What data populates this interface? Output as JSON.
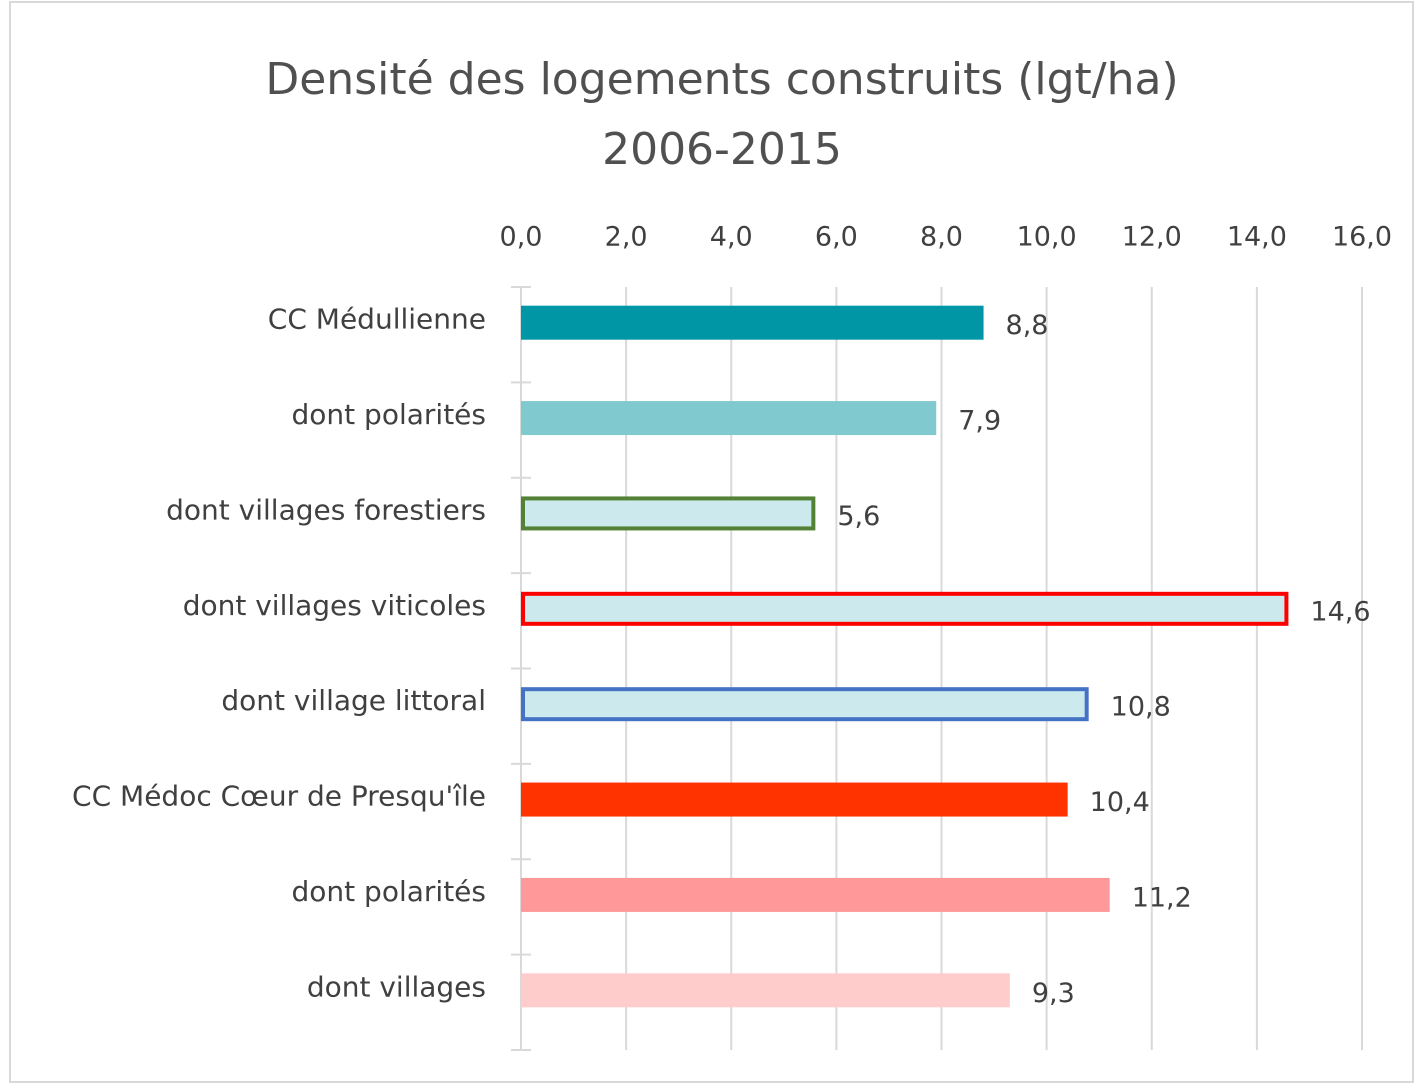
{
  "chart_data": {
    "type": "barh",
    "title": [
      "Densité des logements construits (lgt/ha)",
      "2006-2015"
    ],
    "categories": [
      "CC Médullienne",
      "dont polarités",
      "dont villages forestiers",
      "dont villages viticoles",
      "dont village littoral",
      "CC Médoc Cœur de Presqu'île",
      "dont polarités",
      "dont villages"
    ],
    "values": [
      8.8,
      7.9,
      5.6,
      14.6,
      10.8,
      10.4,
      11.2,
      9.3
    ],
    "value_labels": [
      "8,8",
      "7,9",
      "5,6",
      "14,6",
      "10,8",
      "10,4",
      "11,2",
      "9,3"
    ],
    "colors": [
      "#0096a6",
      "#80cacf",
      "#cce9ed",
      "#cce9ed",
      "#cce9ed",
      "#ff3300",
      "#ff9999",
      "#ffcccc"
    ],
    "edge_colors": [
      null,
      null,
      "#538135",
      "#ff0000",
      "#4472c4",
      null,
      null,
      null
    ],
    "xlim": [
      0,
      16
    ],
    "xticks": [
      {
        "value": 0,
        "label": "0,0"
      },
      {
        "value": 2,
        "label": "2,0"
      },
      {
        "value": 4,
        "label": "4,0"
      },
      {
        "value": 6,
        "label": "6,0"
      },
      {
        "value": 8,
        "label": "8,0"
      },
      {
        "value": 10,
        "label": "10,0"
      },
      {
        "value": 12,
        "label": "12,0"
      },
      {
        "value": 14,
        "label": "14,0"
      },
      {
        "value": 16,
        "label": "16,0"
      }
    ],
    "xaxis_position": "top",
    "grid": true
  }
}
